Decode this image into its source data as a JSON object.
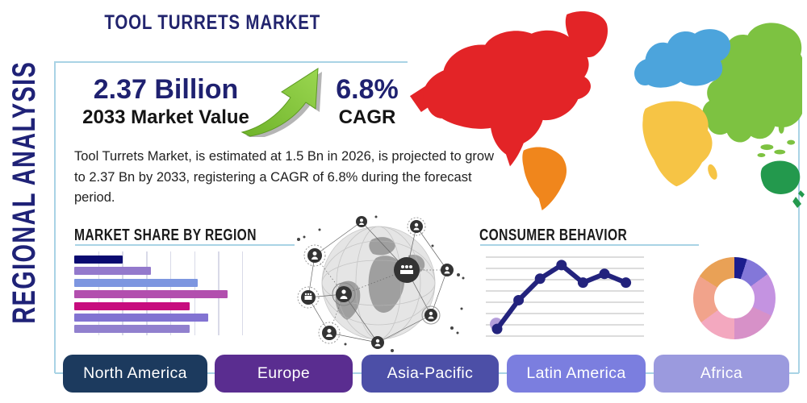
{
  "side_title": "REGIONAL ANALYSIS",
  "main_title": "TOOL TURRETS MARKET",
  "stats": {
    "market_value": "2.37 Billion",
    "market_value_label": "2033 Market Value",
    "cagr_value": "6.8%",
    "cagr_label": "CAGR"
  },
  "description": "Tool Turrets Market, is estimated at 1.5 Bn in 2026, is projected to grow to 2.37 Bn by 2033, registering a CAGR of 6.8% during the forecast period.",
  "market_share": {
    "heading": "MARKET SHARE BY REGION"
  },
  "consumer_behavior": {
    "heading": "CONSUMER BEHAVIOR"
  },
  "region_buttons": [
    {
      "label": "North America",
      "color": "#1c3a5e"
    },
    {
      "label": "Europe",
      "color": "#5a2d90"
    },
    {
      "label": "Asia-Pacific",
      "color": "#4c4fa7"
    },
    {
      "label": "Latin America",
      "color": "#7b7edf"
    },
    {
      "label": "Africa",
      "color": "#9b9ade"
    }
  ],
  "chart_data": [
    {
      "type": "bar",
      "title": "MARKET SHARE BY REGION",
      "orientation": "horizontal",
      "values": [
        29,
        46,
        74,
        92,
        69,
        80,
        69
      ],
      "value_scale": "percent of x-axis, axis unlabeled",
      "colors": [
        "#0a0a70",
        "#9379cc",
        "#7d96e0",
        "#b24fae",
        "#c70d7e",
        "#8273d2",
        "#9180ce"
      ],
      "grid": true,
      "gridline_color": "#d9dae8"
    },
    {
      "type": "line",
      "title": "CONSUMER BEHAVIOR",
      "x": [
        1,
        2,
        3,
        4,
        5,
        6,
        7
      ],
      "y": [
        10,
        46,
        73,
        90,
        68,
        79,
        68
      ],
      "value_scale": "relative 0-100, axes unlabeled",
      "line_color": "#23237d",
      "halo_color": "#b49dda",
      "grid": true,
      "gridline_color": "#c8c8c8"
    },
    {
      "type": "pie",
      "subtype": "donut",
      "values": [
        5,
        10,
        17,
        18,
        15,
        19,
        16
      ],
      "value_scale": "percent, unlabeled segments",
      "colors": [
        "#1b1d8e",
        "#8377d9",
        "#c493e1",
        "#d791c8",
        "#f3a8bf",
        "#f1a38b",
        "#e9a156"
      ]
    }
  ],
  "map_regions": {
    "north_america": "#e32427",
    "south_america": "#f0861c",
    "europe": "#4ca4dc",
    "africa": "#f6c445",
    "asia": "#7dc241",
    "australia": "#23994d"
  },
  "colors": {
    "accent_line": "#a9d3e5",
    "navy": "#22246e",
    "arrow_green": "#86c440"
  }
}
